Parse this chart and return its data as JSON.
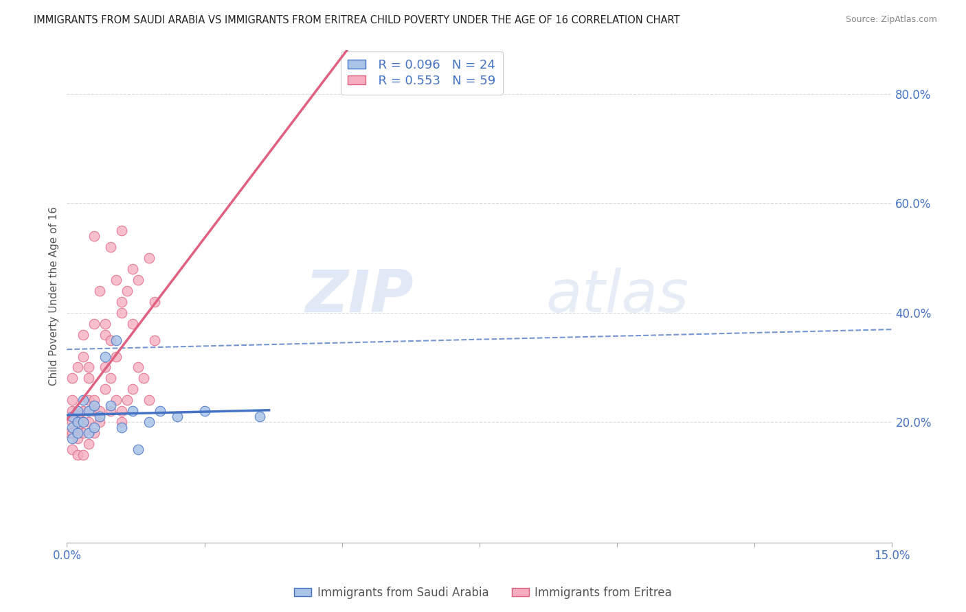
{
  "title": "IMMIGRANTS FROM SAUDI ARABIA VS IMMIGRANTS FROM ERITREA CHILD POVERTY UNDER THE AGE OF 16 CORRELATION CHART",
  "source": "Source: ZipAtlas.com",
  "ylabel": "Child Poverty Under the Age of 16",
  "y_tick_vals": [
    0.2,
    0.4,
    0.6,
    0.8
  ],
  "xlim": [
    0.0,
    0.15
  ],
  "ylim": [
    -0.02,
    0.88
  ],
  "legend_r_saudi": "R = 0.096",
  "legend_n_saudi": "N = 24",
  "legend_r_eritrea": "R = 0.553",
  "legend_n_eritrea": "N = 59",
  "color_saudi": "#aac4e8",
  "color_eritrea": "#f5afc0",
  "line_color_saudi": "#4472c4",
  "line_color_eritrea": "#e06080",
  "watermark_zip": "ZIP",
  "watermark_atlas": "atlas",
  "saudi_x": [
    0.001,
    0.001,
    0.001,
    0.002,
    0.002,
    0.002,
    0.003,
    0.003,
    0.004,
    0.004,
    0.005,
    0.005,
    0.006,
    0.007,
    0.008,
    0.009,
    0.01,
    0.012,
    0.013,
    0.015,
    0.017,
    0.02,
    0.025,
    0.035
  ],
  "saudi_y": [
    0.19,
    0.21,
    0.17,
    0.18,
    0.22,
    0.2,
    0.2,
    0.24,
    0.18,
    0.22,
    0.19,
    0.23,
    0.21,
    0.32,
    0.23,
    0.35,
    0.19,
    0.22,
    0.15,
    0.2,
    0.22,
    0.21,
    0.22,
    0.21
  ],
  "eritrea_x": [
    0.0005,
    0.001,
    0.001,
    0.001,
    0.001,
    0.001,
    0.001,
    0.002,
    0.002,
    0.002,
    0.002,
    0.002,
    0.003,
    0.003,
    0.003,
    0.003,
    0.003,
    0.003,
    0.004,
    0.004,
    0.004,
    0.004,
    0.004,
    0.005,
    0.005,
    0.005,
    0.005,
    0.006,
    0.006,
    0.006,
    0.007,
    0.007,
    0.007,
    0.008,
    0.008,
    0.008,
    0.009,
    0.009,
    0.01,
    0.01,
    0.01,
    0.011,
    0.011,
    0.012,
    0.012,
    0.013,
    0.013,
    0.014,
    0.015,
    0.015,
    0.016,
    0.016,
    0.005,
    0.007,
    0.009,
    0.008,
    0.01,
    0.01,
    0.012
  ],
  "eritrea_y": [
    0.18,
    0.2,
    0.22,
    0.18,
    0.15,
    0.24,
    0.28,
    0.19,
    0.21,
    0.3,
    0.14,
    0.17,
    0.22,
    0.2,
    0.18,
    0.32,
    0.36,
    0.14,
    0.24,
    0.2,
    0.16,
    0.28,
    0.3,
    0.22,
    0.18,
    0.24,
    0.38,
    0.2,
    0.22,
    0.44,
    0.26,
    0.3,
    0.36,
    0.22,
    0.28,
    0.35,
    0.24,
    0.32,
    0.2,
    0.22,
    0.42,
    0.24,
    0.44,
    0.26,
    0.48,
    0.3,
    0.46,
    0.28,
    0.24,
    0.5,
    0.35,
    0.42,
    0.54,
    0.38,
    0.46,
    0.52,
    0.4,
    0.55,
    0.38
  ]
}
